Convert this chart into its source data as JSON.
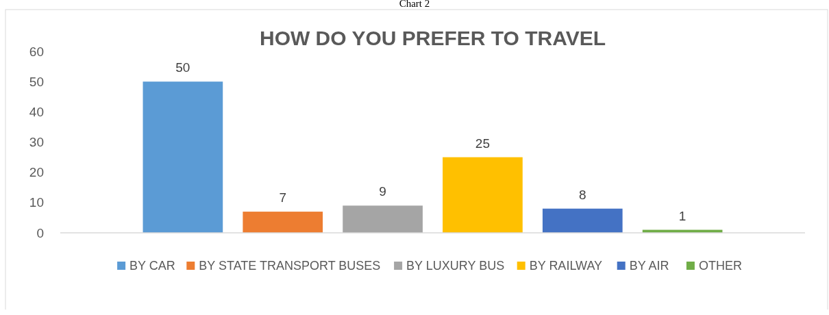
{
  "chart_data": {
    "type": "bar",
    "title": "HOW DO YOU PREFER TO TRAVEL",
    "annotations": [
      "Chart 2"
    ],
    "categories": [
      null
    ],
    "series": [
      {
        "name": "BY CAR",
        "color": "#5b9bd5",
        "values": [
          50
        ]
      },
      {
        "name": "BY STATE TRANSPORT BUSES",
        "color": "#ed7d31",
        "values": [
          7
        ]
      },
      {
        "name": "BY LUXURY BUS",
        "color": "#a5a5a5",
        "values": [
          9
        ]
      },
      {
        "name": "BY RAILWAY",
        "color": "#ffc000",
        "values": [
          25
        ]
      },
      {
        "name": "BY AIR",
        "color": "#4472c4",
        "values": [
          8
        ]
      },
      {
        "name": "OTHER",
        "color": "#70ad47",
        "values": [
          1
        ]
      }
    ],
    "ylim": [
      0,
      60
    ],
    "yticks": [
      0,
      10,
      20,
      30,
      40,
      50,
      60
    ],
    "data_labels": true,
    "legend": "bottom"
  }
}
